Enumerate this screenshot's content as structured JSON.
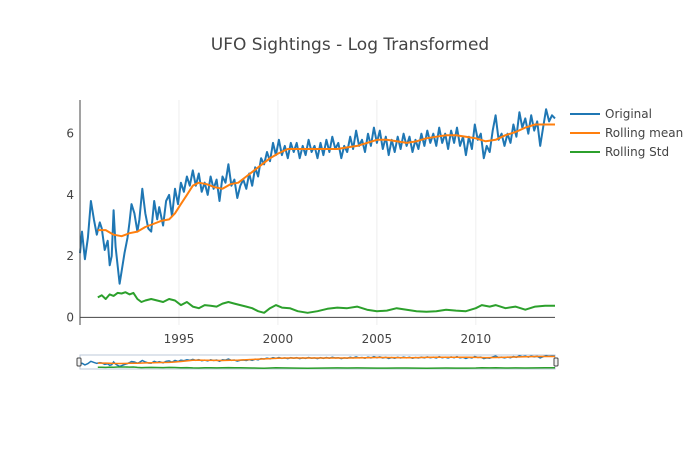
{
  "chart_data": {
    "type": "line",
    "title": "UFO Sightings - Log Transformed",
    "xlabel": "",
    "ylabel": "",
    "x_ticks": [
      1995,
      2000,
      2005,
      2010
    ],
    "y_ticks": [
      0,
      2,
      4,
      6
    ],
    "xlim": [
      1990.0,
      2014.0
    ],
    "ylim": [
      -0.25,
      7.1
    ],
    "grid": "vertical",
    "legend_position": "top-right",
    "rangeslider": true,
    "series": [
      {
        "name": "Original",
        "color": "#1f77b4",
        "points": [
          [
            1990.0,
            2.1
          ],
          [
            1990.1,
            2.8
          ],
          [
            1990.25,
            1.9
          ],
          [
            1990.4,
            2.6
          ],
          [
            1990.55,
            3.8
          ],
          [
            1990.7,
            3.2
          ],
          [
            1990.85,
            2.7
          ],
          [
            1991.0,
            3.1
          ],
          [
            1991.1,
            2.9
          ],
          [
            1991.25,
            2.2
          ],
          [
            1991.4,
            2.5
          ],
          [
            1991.5,
            1.7
          ],
          [
            1991.6,
            2.0
          ],
          [
            1991.7,
            3.5
          ],
          [
            1991.8,
            2.3
          ],
          [
            1991.9,
            1.7
          ],
          [
            1992.0,
            1.1
          ],
          [
            1992.1,
            1.5
          ],
          [
            1992.25,
            2.1
          ],
          [
            1992.4,
            2.6
          ],
          [
            1992.5,
            3.1
          ],
          [
            1992.6,
            3.7
          ],
          [
            1992.75,
            3.4
          ],
          [
            1992.9,
            2.8
          ],
          [
            1993.0,
            3.2
          ],
          [
            1993.15,
            4.2
          ],
          [
            1993.3,
            3.4
          ],
          [
            1993.45,
            2.9
          ],
          [
            1993.6,
            2.8
          ],
          [
            1993.75,
            3.8
          ],
          [
            1993.9,
            3.2
          ],
          [
            1994.0,
            3.6
          ],
          [
            1994.2,
            3.0
          ],
          [
            1994.35,
            3.8
          ],
          [
            1994.5,
            4.0
          ],
          [
            1994.65,
            3.3
          ],
          [
            1994.8,
            4.2
          ],
          [
            1994.95,
            3.7
          ],
          [
            1995.1,
            4.4
          ],
          [
            1995.25,
            4.1
          ],
          [
            1995.4,
            4.6
          ],
          [
            1995.55,
            4.3
          ],
          [
            1995.7,
            4.8
          ],
          [
            1995.85,
            4.3
          ],
          [
            1996.0,
            4.7
          ],
          [
            1996.15,
            4.1
          ],
          [
            1996.3,
            4.4
          ],
          [
            1996.45,
            4.0
          ],
          [
            1996.6,
            4.6
          ],
          [
            1996.75,
            4.2
          ],
          [
            1996.9,
            4.5
          ],
          [
            1997.05,
            3.8
          ],
          [
            1997.2,
            4.6
          ],
          [
            1997.35,
            4.4
          ],
          [
            1997.5,
            5.0
          ],
          [
            1997.65,
            4.3
          ],
          [
            1997.8,
            4.5
          ],
          [
            1997.95,
            3.9
          ],
          [
            1998.1,
            4.3
          ],
          [
            1998.25,
            4.5
          ],
          [
            1998.4,
            4.2
          ],
          [
            1998.55,
            4.7
          ],
          [
            1998.7,
            4.3
          ],
          [
            1998.85,
            4.9
          ],
          [
            1999.0,
            4.6
          ],
          [
            1999.15,
            5.2
          ],
          [
            1999.3,
            5.0
          ],
          [
            1999.45,
            5.4
          ],
          [
            1999.6,
            5.1
          ],
          [
            1999.75,
            5.7
          ],
          [
            1999.9,
            5.3
          ],
          [
            2000.05,
            5.8
          ],
          [
            2000.2,
            5.3
          ],
          [
            2000.35,
            5.6
          ],
          [
            2000.5,
            5.2
          ],
          [
            2000.65,
            5.7
          ],
          [
            2000.8,
            5.4
          ],
          [
            2000.95,
            5.7
          ],
          [
            2001.1,
            5.2
          ],
          [
            2001.25,
            5.6
          ],
          [
            2001.4,
            5.3
          ],
          [
            2001.55,
            5.8
          ],
          [
            2001.7,
            5.4
          ],
          [
            2001.85,
            5.6
          ],
          [
            2002.0,
            5.2
          ],
          [
            2002.15,
            5.7
          ],
          [
            2002.3,
            5.3
          ],
          [
            2002.45,
            5.8
          ],
          [
            2002.6,
            5.4
          ],
          [
            2002.75,
            5.9
          ],
          [
            2002.9,
            5.5
          ],
          [
            2003.05,
            5.7
          ],
          [
            2003.2,
            5.2
          ],
          [
            2003.35,
            5.6
          ],
          [
            2003.5,
            5.4
          ],
          [
            2003.65,
            5.9
          ],
          [
            2003.8,
            5.5
          ],
          [
            2003.95,
            6.1
          ],
          [
            2004.1,
            5.6
          ],
          [
            2004.25,
            5.8
          ],
          [
            2004.4,
            5.4
          ],
          [
            2004.55,
            6.0
          ],
          [
            2004.7,
            5.6
          ],
          [
            2004.85,
            6.2
          ],
          [
            2005.0,
            5.7
          ],
          [
            2005.15,
            6.1
          ],
          [
            2005.3,
            5.5
          ],
          [
            2005.45,
            5.9
          ],
          [
            2005.6,
            5.3
          ],
          [
            2005.75,
            5.8
          ],
          [
            2005.9,
            5.4
          ],
          [
            2006.05,
            5.9
          ],
          [
            2006.2,
            5.5
          ],
          [
            2006.35,
            6.0
          ],
          [
            2006.5,
            5.6
          ],
          [
            2006.65,
            5.9
          ],
          [
            2006.8,
            5.4
          ],
          [
            2006.95,
            5.8
          ],
          [
            2007.1,
            5.5
          ],
          [
            2007.25,
            6.0
          ],
          [
            2007.4,
            5.6
          ],
          [
            2007.55,
            6.1
          ],
          [
            2007.7,
            5.7
          ],
          [
            2007.85,
            6.0
          ],
          [
            2008.0,
            5.6
          ],
          [
            2008.15,
            6.2
          ],
          [
            2008.3,
            5.7
          ],
          [
            2008.45,
            6.0
          ],
          [
            2008.6,
            5.5
          ],
          [
            2008.75,
            6.1
          ],
          [
            2008.9,
            5.7
          ],
          [
            2009.05,
            6.2
          ],
          [
            2009.2,
            5.6
          ],
          [
            2009.35,
            5.9
          ],
          [
            2009.5,
            5.3
          ],
          [
            2009.65,
            5.9
          ],
          [
            2009.8,
            5.5
          ],
          [
            2009.95,
            6.3
          ],
          [
            2010.1,
            5.8
          ],
          [
            2010.25,
            6.0
          ],
          [
            2010.4,
            5.2
          ],
          [
            2010.55,
            5.6
          ],
          [
            2010.7,
            5.4
          ],
          [
            2010.85,
            6.1
          ],
          [
            2011.0,
            6.6
          ],
          [
            2011.15,
            5.8
          ],
          [
            2011.3,
            6.0
          ],
          [
            2011.45,
            5.6
          ],
          [
            2011.6,
            6.0
          ],
          [
            2011.75,
            5.7
          ],
          [
            2011.9,
            6.3
          ],
          [
            2012.05,
            5.9
          ],
          [
            2012.2,
            6.7
          ],
          [
            2012.35,
            6.2
          ],
          [
            2012.5,
            6.5
          ],
          [
            2012.65,
            6.0
          ],
          [
            2012.8,
            6.6
          ],
          [
            2012.95,
            6.1
          ],
          [
            2013.1,
            6.4
          ],
          [
            2013.25,
            5.6
          ],
          [
            2013.4,
            6.2
          ],
          [
            2013.55,
            6.8
          ],
          [
            2013.7,
            6.4
          ],
          [
            2013.85,
            6.6
          ],
          [
            2014.0,
            6.5
          ]
        ]
      },
      {
        "name": "Rolling mean",
        "color": "#ff7f0e",
        "points": [
          [
            1990.9,
            2.85
          ],
          [
            1991.3,
            2.85
          ],
          [
            1991.7,
            2.7
          ],
          [
            1992.1,
            2.65
          ],
          [
            1992.5,
            2.75
          ],
          [
            1992.9,
            2.8
          ],
          [
            1993.3,
            2.95
          ],
          [
            1993.7,
            3.05
          ],
          [
            1994.1,
            3.15
          ],
          [
            1994.5,
            3.2
          ],
          [
            1994.8,
            3.4
          ],
          [
            1995.1,
            3.7
          ],
          [
            1995.4,
            4.0
          ],
          [
            1995.7,
            4.3
          ],
          [
            1996.0,
            4.4
          ],
          [
            1996.4,
            4.35
          ],
          [
            1996.8,
            4.25
          ],
          [
            1997.2,
            4.2
          ],
          [
            1997.6,
            4.35
          ],
          [
            1998.0,
            4.4
          ],
          [
            1998.4,
            4.6
          ],
          [
            1998.8,
            4.8
          ],
          [
            1999.2,
            5.0
          ],
          [
            1999.6,
            5.2
          ],
          [
            2000.0,
            5.35
          ],
          [
            2000.5,
            5.5
          ],
          [
            2001.0,
            5.5
          ],
          [
            2001.5,
            5.5
          ],
          [
            2002.0,
            5.5
          ],
          [
            2002.5,
            5.5
          ],
          [
            2003.0,
            5.5
          ],
          [
            2003.5,
            5.55
          ],
          [
            2004.0,
            5.6
          ],
          [
            2004.5,
            5.7
          ],
          [
            2005.0,
            5.8
          ],
          [
            2005.5,
            5.8
          ],
          [
            2006.0,
            5.75
          ],
          [
            2006.5,
            5.7
          ],
          [
            2007.0,
            5.75
          ],
          [
            2007.5,
            5.85
          ],
          [
            2008.0,
            5.9
          ],
          [
            2008.5,
            5.95
          ],
          [
            2009.0,
            5.95
          ],
          [
            2009.5,
            5.9
          ],
          [
            2010.0,
            5.85
          ],
          [
            2010.5,
            5.75
          ],
          [
            2011.0,
            5.8
          ],
          [
            2011.5,
            5.95
          ],
          [
            2012.0,
            6.05
          ],
          [
            2012.5,
            6.2
          ],
          [
            2013.0,
            6.3
          ],
          [
            2013.5,
            6.3
          ],
          [
            2014.0,
            6.3
          ]
        ]
      },
      {
        "name": "Rolling Std",
        "color": "#2ca02c",
        "points": [
          [
            1990.9,
            0.65
          ],
          [
            1991.1,
            0.72
          ],
          [
            1991.3,
            0.6
          ],
          [
            1991.5,
            0.75
          ],
          [
            1991.7,
            0.7
          ],
          [
            1991.9,
            0.8
          ],
          [
            1992.1,
            0.78
          ],
          [
            1992.3,
            0.82
          ],
          [
            1992.5,
            0.75
          ],
          [
            1992.7,
            0.8
          ],
          [
            1992.9,
            0.6
          ],
          [
            1993.1,
            0.5
          ],
          [
            1993.3,
            0.55
          ],
          [
            1993.6,
            0.6
          ],
          [
            1993.9,
            0.55
          ],
          [
            1994.2,
            0.5
          ],
          [
            1994.5,
            0.6
          ],
          [
            1994.8,
            0.55
          ],
          [
            1995.1,
            0.4
          ],
          [
            1995.4,
            0.5
          ],
          [
            1995.7,
            0.35
          ],
          [
            1996.0,
            0.3
          ],
          [
            1996.3,
            0.4
          ],
          [
            1996.6,
            0.38
          ],
          [
            1996.9,
            0.35
          ],
          [
            1997.2,
            0.45
          ],
          [
            1997.5,
            0.5
          ],
          [
            1997.8,
            0.45
          ],
          [
            1998.1,
            0.4
          ],
          [
            1998.4,
            0.35
          ],
          [
            1998.7,
            0.3
          ],
          [
            1999.0,
            0.2
          ],
          [
            1999.3,
            0.15
          ],
          [
            1999.6,
            0.3
          ],
          [
            1999.9,
            0.4
          ],
          [
            2000.2,
            0.32
          ],
          [
            2000.6,
            0.3
          ],
          [
            2001.0,
            0.2
          ],
          [
            2001.5,
            0.15
          ],
          [
            2002.0,
            0.2
          ],
          [
            2002.5,
            0.28
          ],
          [
            2003.0,
            0.32
          ],
          [
            2003.5,
            0.3
          ],
          [
            2004.0,
            0.35
          ],
          [
            2004.5,
            0.25
          ],
          [
            2005.0,
            0.2
          ],
          [
            2005.5,
            0.22
          ],
          [
            2006.0,
            0.3
          ],
          [
            2006.5,
            0.25
          ],
          [
            2007.0,
            0.2
          ],
          [
            2007.5,
            0.18
          ],
          [
            2008.0,
            0.2
          ],
          [
            2008.5,
            0.25
          ],
          [
            2009.0,
            0.22
          ],
          [
            2009.5,
            0.2
          ],
          [
            2010.0,
            0.3
          ],
          [
            2010.3,
            0.4
          ],
          [
            2010.7,
            0.35
          ],
          [
            2011.0,
            0.4
          ],
          [
            2011.5,
            0.3
          ],
          [
            2012.0,
            0.35
          ],
          [
            2012.5,
            0.25
          ],
          [
            2013.0,
            0.35
          ],
          [
            2013.5,
            0.38
          ],
          [
            2014.0,
            0.38
          ]
        ]
      }
    ]
  }
}
